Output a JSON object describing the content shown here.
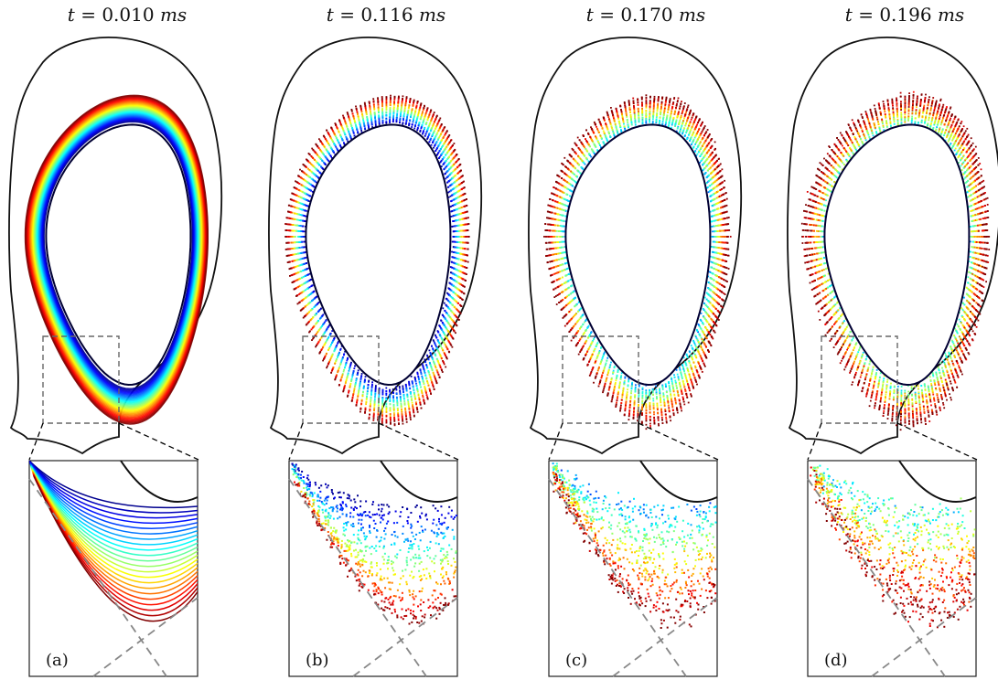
{
  "panels": [
    {
      "time_var": "t",
      "time_eq": " = ",
      "time_value": "0.010",
      "time_unit": "ms",
      "label": "(a)",
      "spread": 0.0,
      "minHue": 0.0
    },
    {
      "time_var": "t",
      "time_eq": " = ",
      "time_value": "0.116",
      "time_unit": "ms",
      "label": "(b)",
      "spread": 0.35,
      "minHue": 0.0
    },
    {
      "time_var": "t",
      "time_eq": " = ",
      "time_value": "0.170",
      "time_unit": "ms",
      "label": "(c)",
      "spread": 0.65,
      "minHue": 0.25
    },
    {
      "time_var": "t",
      "time_eq": " = ",
      "time_value": "0.196",
      "time_unit": "ms",
      "label": "(d)",
      "spread": 1.0,
      "minHue": 0.35
    }
  ],
  "colors": {
    "wall": "#111111",
    "separatrix": "#888888",
    "zoom_box": "#666666",
    "colormap": [
      "#00008f",
      "#0000ff",
      "#00ffff",
      "#ffff00",
      "#ff0000",
      "#800000"
    ]
  }
}
